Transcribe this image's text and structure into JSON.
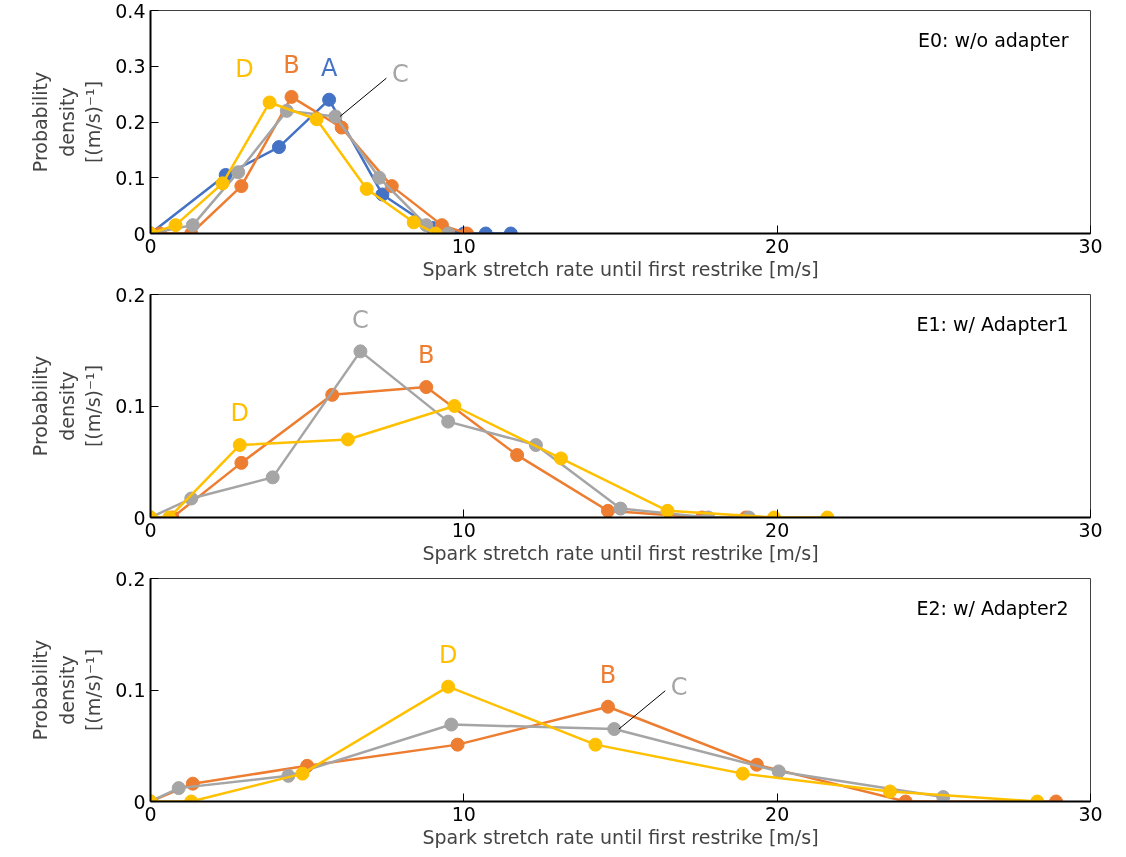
{
  "chart_data": [
    {
      "type": "line",
      "title": "E0: w/o adapter",
      "xlabel": "Spark stretch rate until first restrike [m/s]",
      "ylabel": "Probability density [(m/s)⁻¹]",
      "xlim": [
        0,
        30
      ],
      "xticks": [
        0,
        10,
        20,
        30
      ],
      "ylim": [
        0,
        0.4
      ],
      "yticks": [
        0,
        0.1,
        0.2,
        0.3,
        0.4
      ],
      "grid": false,
      "marker": "circle",
      "line_style": "solid",
      "series": [
        {
          "color": "#4472c4",
          "x": [
            0,
            2.4,
            4.1,
            5.7,
            7.4,
            9.0,
            10.0,
            10.7,
            11.5
          ],
          "values": [
            0,
            0.105,
            0.155,
            0.24,
            0.07,
            0.01,
            0,
            0,
            0
          ]
        },
        {
          "color": "#ed7d31",
          "x": [
            0,
            0.3,
            1.3,
            2.9,
            4.5,
            6.1,
            7.7,
            9.3,
            10.1
          ],
          "values": [
            0,
            0,
            0,
            0.085,
            0.245,
            0.19,
            0.085,
            0.015,
            0
          ]
        },
        {
          "color": "#a5a5a5",
          "x": [
            0,
            1.35,
            2.8,
            4.35,
            5.9,
            7.3,
            8.8,
            9.5
          ],
          "values": [
            0,
            0.015,
            0.11,
            0.22,
            0.21,
            0.1,
            0.015,
            0
          ]
        },
        {
          "color": "#ffc000",
          "x": [
            0,
            0.8,
            2.3,
            3.8,
            5.3,
            6.9,
            8.4,
            9.1
          ],
          "values": [
            0,
            0.015,
            0.09,
            0.235,
            0.205,
            0.08,
            0.02,
            0
          ]
        }
      ],
      "annotations": [
        {
          "text": "A",
          "x": 5.7,
          "y": 0.24
        },
        {
          "text": "B",
          "x": 4.5,
          "y": 0.245
        },
        {
          "text": "C",
          "x": 5.9,
          "y": 0.21
        },
        {
          "text": "D",
          "x": 3.8,
          "y": 0.235
        }
      ]
    },
    {
      "type": "line",
      "title": "E1: w/ Adapter1",
      "xlabel": "Spark stretch rate until first restrike [m/s]",
      "ylabel": "Probability density [(m/s)⁻¹]",
      "xlim": [
        0,
        30
      ],
      "xticks": [
        0,
        10,
        20,
        30
      ],
      "ylim": [
        0,
        0.2
      ],
      "yticks": [
        0,
        0.1,
        0.2
      ],
      "grid": false,
      "marker": "circle",
      "line_style": "solid",
      "series": [
        {
          "color": "#ed7d31",
          "x": [
            0,
            0.7,
            2.9,
            5.8,
            8.8,
            11.7,
            14.6,
            17.6,
            19.0
          ],
          "values": [
            0,
            0,
            0.049,
            0.11,
            0.117,
            0.056,
            0.006,
            0,
            0
          ]
        },
        {
          "color": "#a5a5a5",
          "x": [
            0,
            1.3,
            3.9,
            6.7,
            9.5,
            12.3,
            15.0,
            17.8,
            19.1
          ],
          "values": [
            0,
            0.017,
            0.036,
            0.149,
            0.086,
            0.065,
            0.008,
            0,
            0
          ]
        },
        {
          "color": "#ffc000",
          "x": [
            0,
            0.6,
            2.85,
            6.3,
            9.7,
            13.1,
            16.5,
            19.9,
            21.6
          ],
          "values": [
            0,
            0,
            0.065,
            0.07,
            0.1,
            0.053,
            0.006,
            0,
            0
          ]
        }
      ],
      "annotations": [
        {
          "text": "B",
          "x": 8.8,
          "y": 0.117
        },
        {
          "text": "C",
          "x": 6.7,
          "y": 0.149
        },
        {
          "text": "D",
          "x": 2.85,
          "y": 0.065
        }
      ]
    },
    {
      "type": "line",
      "title": "E2: w/ Adapter2",
      "xlabel": "Spark stretch rate until first restrike [m/s]",
      "ylabel": "Probability density [(m/s)⁻¹]",
      "xlim": [
        0,
        30
      ],
      "xticks": [
        0,
        10,
        20,
        30
      ],
      "ylim": [
        0,
        0.2
      ],
      "yticks": [
        0,
        0.1,
        0.2
      ],
      "grid": false,
      "marker": "circle",
      "line_style": "solid",
      "series": [
        {
          "color": "#ed7d31",
          "x": [
            0,
            1.35,
            5.0,
            9.8,
            14.6,
            19.35,
            24.1,
            28.9
          ],
          "values": [
            0,
            0.016,
            0.032,
            0.051,
            0.085,
            0.033,
            0,
            0
          ]
        },
        {
          "color": "#a5a5a5",
          "x": [
            0,
            0.9,
            4.4,
            9.6,
            14.8,
            20.05,
            25.3
          ],
          "values": [
            0,
            0.012,
            0.023,
            0.069,
            0.065,
            0.027,
            0.004
          ]
        },
        {
          "color": "#ffc000",
          "x": [
            0,
            1.3,
            4.85,
            9.5,
            14.2,
            18.9,
            23.6,
            28.3
          ],
          "values": [
            0,
            0,
            0.025,
            0.103,
            0.051,
            0.025,
            0.009,
            0
          ]
        }
      ],
      "annotations": [
        {
          "text": "B",
          "x": 14.6,
          "y": 0.085
        },
        {
          "text": "C",
          "x": 14.8,
          "y": 0.065
        },
        {
          "text": "D",
          "x": 9.5,
          "y": 0.103
        }
      ]
    }
  ]
}
